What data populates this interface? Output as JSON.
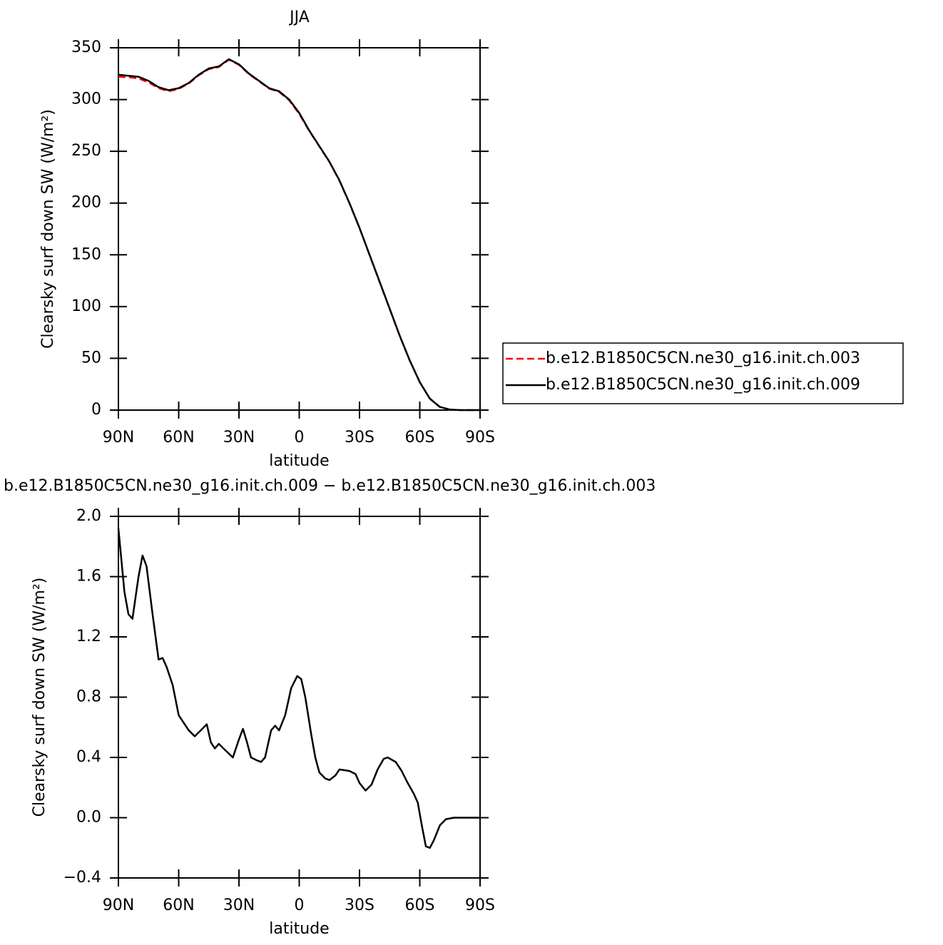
{
  "chart_data": [
    {
      "type": "line",
      "title": "JJA",
      "xlabel": "latitude",
      "ylabel": "Clearsky surf down SW (W/m²)",
      "x": [
        90,
        85,
        80,
        75,
        70,
        65,
        60,
        55,
        50,
        45,
        40,
        35,
        30,
        25,
        20,
        15,
        10,
        5,
        0,
        -5,
        -10,
        -15,
        -20,
        -25,
        -30,
        -35,
        -40,
        -45,
        -50,
        -55,
        -60,
        -65,
        -70,
        -75,
        -80,
        -85,
        -90
      ],
      "series": [
        {
          "name": "b.e12.B1850C5CN.ne30_g16.init.ch.003",
          "color": "#ff0000",
          "linestyle": "dashed",
          "values": [
            322,
            321.6,
            320.4,
            316.5,
            311,
            308,
            310.3,
            315.4,
            323.5,
            329.4,
            331.5,
            338.5,
            333.5,
            324.5,
            317.6,
            310.5,
            307.4,
            299.3,
            286.1,
            269.6,
            254.7,
            239.7,
            221.7,
            199.7,
            175.8,
            149.8,
            123.7,
            97.6,
            71.7,
            47.8,
            26.9,
            11.2,
            3.05,
            0.5,
            0,
            0,
            0
          ]
        },
        {
          "name": "b.e12.B1850C5CN.ne30_g16.init.ch.009",
          "color": "#000000",
          "linestyle": "solid",
          "values": [
            324,
            323,
            322,
            318,
            312,
            309,
            311,
            316,
            324,
            330,
            332,
            339,
            334,
            325,
            318,
            311,
            308,
            300,
            287,
            270,
            255,
            240,
            222,
            200,
            176,
            150,
            124,
            98,
            72,
            48,
            27,
            11,
            3,
            0.5,
            0,
            0,
            0
          ]
        }
      ],
      "xlim": [
        90,
        -90
      ],
      "xticks": [
        {
          "value": 90,
          "label": "90N"
        },
        {
          "value": 60,
          "label": "60N"
        },
        {
          "value": 30,
          "label": "30N"
        },
        0,
        {
          "value": -30,
          "label": "30S"
        },
        {
          "value": -60,
          "label": "60S"
        },
        {
          "value": -90,
          "label": "90S"
        }
      ],
      "ylim": [
        0,
        350
      ],
      "yticks": [
        0,
        50,
        100,
        150,
        200,
        250,
        300,
        350
      ],
      "legend": "right"
    },
    {
      "type": "line",
      "title": "b.e12.B1850C5CN.ne30_g16.init.ch.009 − b.e12.B1850C5CN.ne30_g16.init.ch.003",
      "xlabel": "latitude",
      "ylabel": "Clearsky surf down SW (W/m²)",
      "x": [
        90,
        87,
        85,
        83,
        80,
        78,
        76,
        73,
        70,
        68,
        66,
        63,
        60,
        57,
        55,
        52,
        49,
        46,
        44,
        42,
        40,
        37,
        33,
        30,
        28,
        26,
        24,
        21,
        19,
        17,
        14,
        12,
        10,
        7,
        4,
        1,
        -1,
        -3,
        -6,
        -8,
        -10,
        -13,
        -15,
        -18,
        -20,
        -25,
        -28,
        -30,
        -33,
        -36,
        -39,
        -42,
        -44,
        -48,
        -51,
        -54,
        -57,
        -59,
        -61,
        -63,
        -65,
        -67,
        -70,
        -73,
        -77,
        -90
      ],
      "series": [
        {
          "color": "#000000",
          "linestyle": "solid",
          "values": [
            1.92,
            1.5,
            1.35,
            1.32,
            1.6,
            1.74,
            1.67,
            1.35,
            1.05,
            1.06,
            1.0,
            0.88,
            0.68,
            0.62,
            0.58,
            0.54,
            0.58,
            0.62,
            0.5,
            0.46,
            0.49,
            0.45,
            0.4,
            0.52,
            0.59,
            0.5,
            0.4,
            0.38,
            0.37,
            0.4,
            0.58,
            0.61,
            0.58,
            0.68,
            0.86,
            0.94,
            0.92,
            0.8,
            0.55,
            0.4,
            0.3,
            0.26,
            0.25,
            0.28,
            0.32,
            0.31,
            0.29,
            0.23,
            0.18,
            0.22,
            0.32,
            0.39,
            0.4,
            0.37,
            0.31,
            0.23,
            0.16,
            0.1,
            -0.05,
            -0.19,
            -0.2,
            -0.15,
            -0.05,
            -0.01,
            0,
            0
          ]
        }
      ],
      "xlim": [
        90,
        -90
      ],
      "xticks": [
        {
          "value": 90,
          "label": "90N"
        },
        {
          "value": 60,
          "label": "60N"
        },
        {
          "value": 30,
          "label": "30N"
        },
        0,
        {
          "value": -30,
          "label": "30S"
        },
        {
          "value": -60,
          "label": "60S"
        },
        {
          "value": -90,
          "label": "90S"
        }
      ],
      "ylim": [
        -0.4,
        2.0
      ],
      "yticks": [
        {
          "value": -0.4,
          "label": "−0.4"
        },
        {
          "value": 0,
          "label": "0.0"
        },
        0.4,
        0.8,
        1.2,
        1.6,
        {
          "value": 2.0,
          "label": "2.0"
        }
      ]
    }
  ]
}
